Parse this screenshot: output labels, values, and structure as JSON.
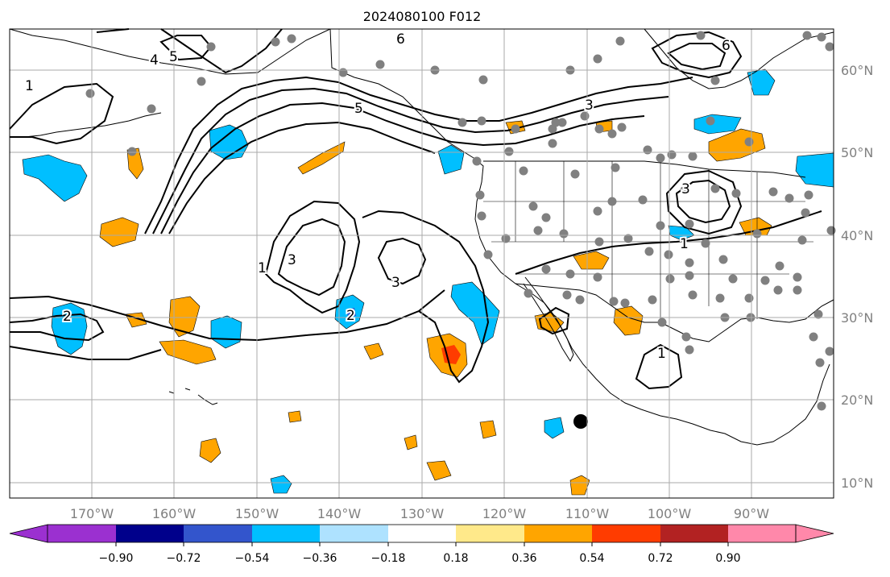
{
  "title": "2024080100 F012",
  "lon_labels": [
    "170°W",
    "160°W",
    "150°W",
    "140°W",
    "130°W",
    "120°W",
    "110°W",
    "100°W",
    "90°W"
  ],
  "lat_labels": [
    "60°N",
    "50°N",
    "40°N",
    "30°N",
    "20°N",
    "10°N"
  ],
  "colorbar": {
    "colors": [
      "#9b30d0",
      "#00008b",
      "#3355cc",
      "#00bfff",
      "#aee2ff",
      "#ffffff",
      "#ffe98a",
      "#ffa500",
      "#ff3c00",
      "#b22222",
      "#ff88aa"
    ],
    "tick_labels": [
      "−0.90",
      "−0.72",
      "−0.54",
      "−0.36",
      "−0.18",
      "0.18",
      "0.36",
      "0.54",
      "0.72",
      "0.90"
    ]
  },
  "contour_labels": [
    {
      "text": "1",
      "id": "c1-west"
    },
    {
      "text": "2",
      "id": "c2-west"
    },
    {
      "text": "1",
      "id": "c1-mid"
    },
    {
      "text": "3",
      "id": "c3-mid"
    },
    {
      "text": "3",
      "id": "c3-center"
    },
    {
      "text": "2",
      "id": "c2-center"
    },
    {
      "text": "5",
      "id": "c5-jet"
    },
    {
      "text": "3",
      "id": "c3-canada"
    },
    {
      "text": "1",
      "id": "c1-us"
    },
    {
      "text": "3",
      "id": "c3-lakes"
    },
    {
      "text": "5",
      "id": "c5-alaska"
    },
    {
      "text": "6",
      "id": "c6-alaska"
    },
    {
      "text": "6",
      "id": "c6-hudson"
    },
    {
      "text": "4",
      "id": "c4-alaska"
    },
    {
      "text": "1",
      "id": "c1-mexico"
    }
  ],
  "colors": {
    "grid": "#aaaaaa",
    "axis_text": "#808080",
    "contour": "#000000",
    "station": "#808080"
  }
}
